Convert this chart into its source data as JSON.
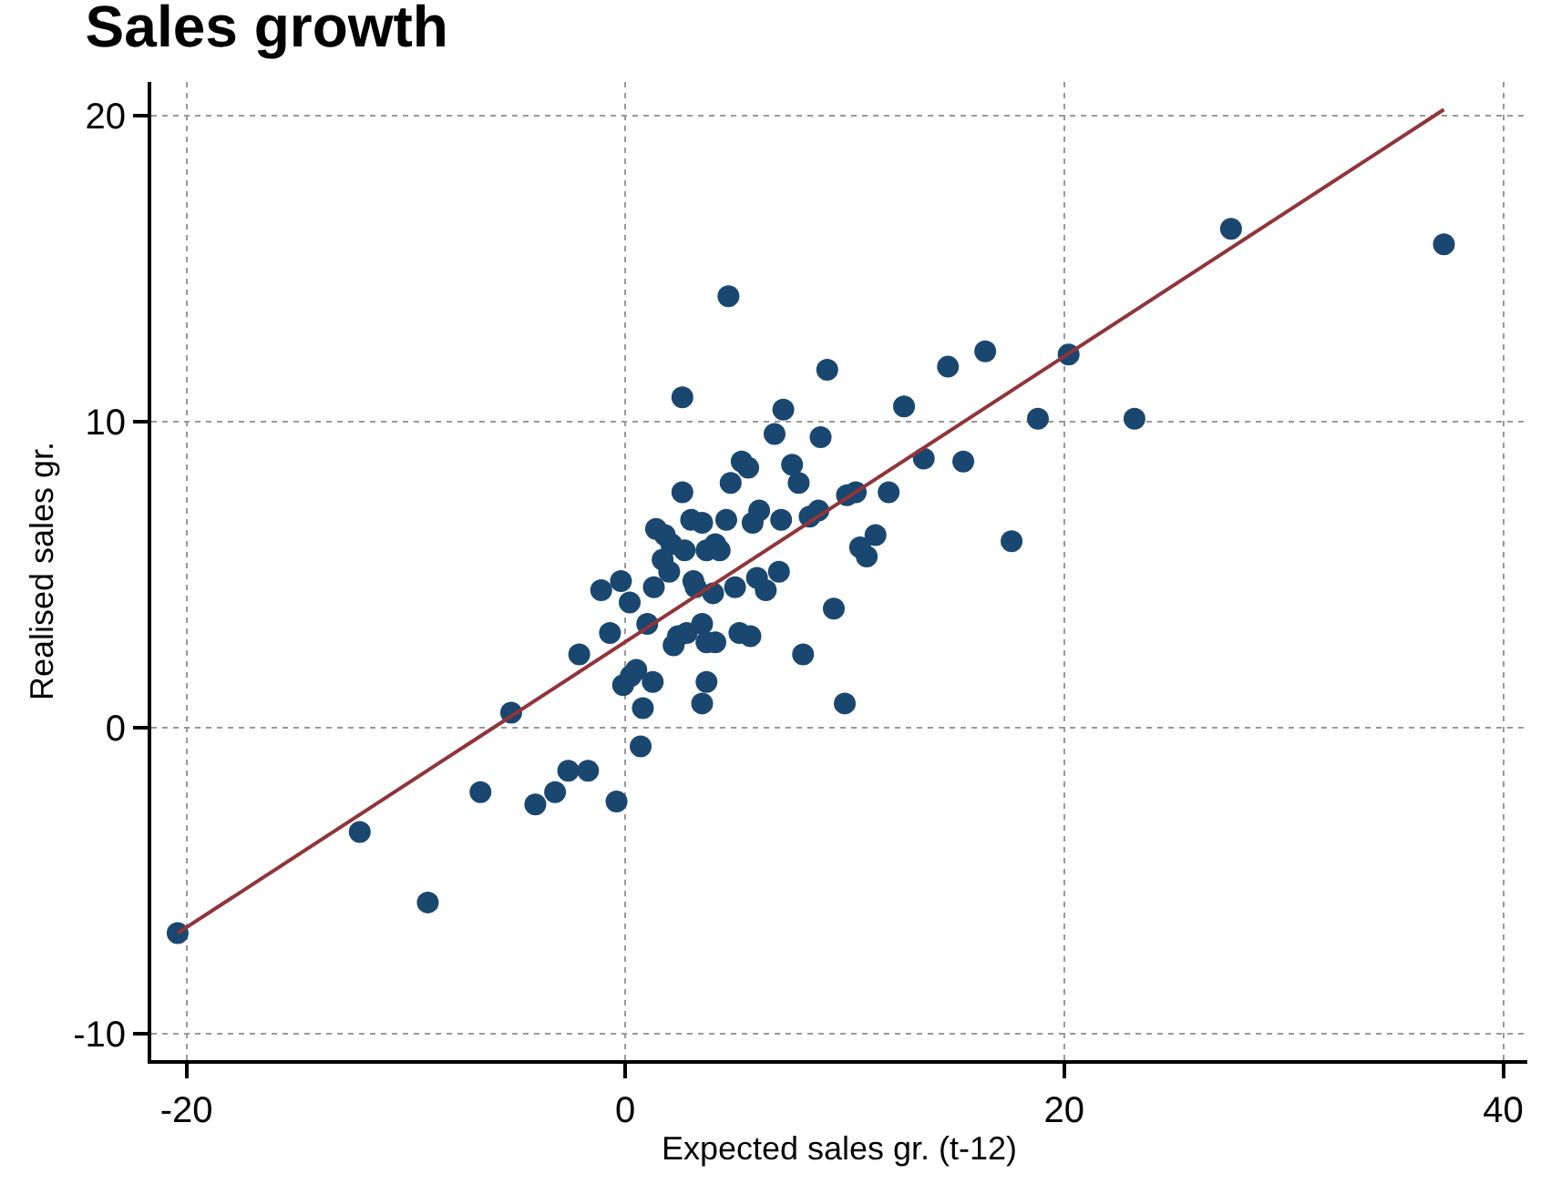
{
  "chart_data": {
    "type": "scatter",
    "title": "Sales growth",
    "xlabel": "Expected sales gr. (t-12)",
    "ylabel": "Realised sales gr.",
    "xlim": [
      -21.6,
      41.1
    ],
    "ylim": [
      -10.85,
      21.1
    ],
    "xticks": [
      -20,
      0,
      20,
      40
    ],
    "yticks": [
      -10,
      0,
      10,
      20
    ],
    "grid": true,
    "series": [
      {
        "marker": "circle",
        "color": "#1a476f",
        "x": [
          -20.4,
          -12.1,
          -9.0,
          -6.6,
          -5.2,
          -4.1,
          -3.2,
          -2.6,
          -1.7,
          -0.4,
          0.7,
          0.8,
          -0.1,
          0.25,
          0.5,
          1.25,
          -2.1,
          -0.7,
          -1.1,
          0.2,
          -0.2,
          1.0,
          1.3,
          1.7,
          2.1,
          1.8,
          2.2,
          2.4,
          2.8,
          2.6,
          2.6,
          3.0,
          3.5,
          3.7,
          2.7,
          3.2,
          3.5,
          3.7,
          3.7,
          3.5,
          4.1,
          3.1,
          4.0,
          4.3,
          4.6,
          4.8,
          4.7,
          5.0,
          5.2,
          5.7,
          5.3,
          5.6,
          5.8,
          6.1,
          6.0,
          6.4,
          6.8,
          7.1,
          7.2,
          7.0,
          7.6,
          7.9,
          8.1,
          8.4,
          8.8,
          8.9,
          9.2,
          9.5,
          10.0,
          10.1,
          10.5,
          10.7,
          11.0,
          11.4,
          12.0,
          12.7,
          13.6,
          14.7,
          15.4,
          16.4,
          17.6,
          18.8,
          20.2,
          23.2,
          27.6,
          37.3,
          1.4,
          2.0,
          4.1
        ],
        "values": [
          -6.7,
          -3.4,
          -5.7,
          -2.1,
          0.5,
          -2.5,
          -2.1,
          -1.4,
          -1.4,
          -2.4,
          -0.6,
          0.65,
          1.4,
          1.7,
          1.9,
          1.5,
          2.4,
          3.1,
          4.5,
          4.1,
          4.8,
          3.4,
          4.6,
          5.5,
          6.0,
          6.3,
          2.7,
          3.0,
          3.1,
          7.7,
          10.8,
          6.8,
          6.7,
          5.8,
          5.8,
          4.6,
          3.4,
          2.8,
          1.5,
          0.8,
          2.8,
          4.8,
          4.4,
          5.8,
          6.8,
          8.0,
          14.1,
          4.6,
          3.1,
          3.0,
          8.7,
          8.5,
          6.7,
          7.1,
          4.9,
          4.5,
          9.6,
          6.8,
          10.4,
          5.1,
          8.6,
          8.0,
          2.4,
          6.9,
          7.1,
          9.5,
          11.7,
          3.9,
          0.8,
          7.6,
          7.7,
          5.9,
          5.6,
          6.3,
          7.7,
          10.5,
          8.8,
          11.8,
          8.7,
          12.3,
          6.1,
          10.1,
          12.2,
          10.1,
          16.3,
          15.8,
          6.5,
          5.1,
          6.0
        ]
      },
      {
        "type": "line",
        "color": "#90353b",
        "line_style": "solid",
        "x": [
          -20.4,
          37.3
        ],
        "values": [
          -6.7,
          20.2
        ]
      }
    ]
  }
}
